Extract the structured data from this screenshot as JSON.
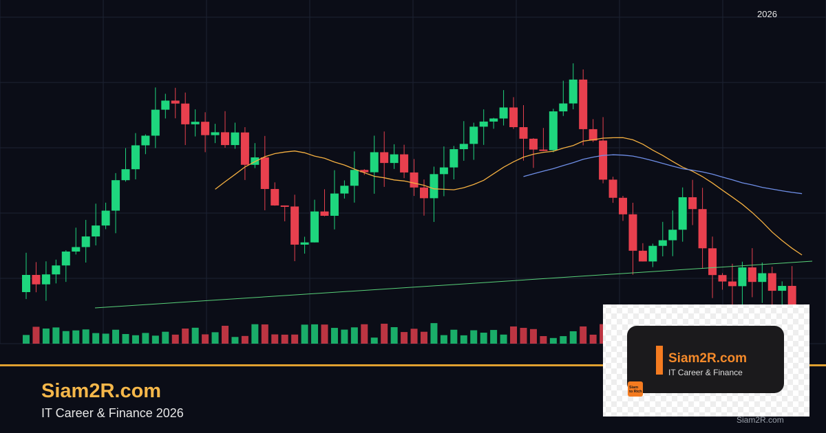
{
  "header": {
    "year": "2026"
  },
  "brand": {
    "title": "Siam2R.com",
    "subtitle": "IT Career & Finance 2026"
  },
  "logo_card": {
    "title": "Siam2R.com",
    "subtitle": "IT Career & Finance",
    "icon_lines": [
      "Siam",
      "to Rich"
    ]
  },
  "watermark": "Siam2R.com"
}
